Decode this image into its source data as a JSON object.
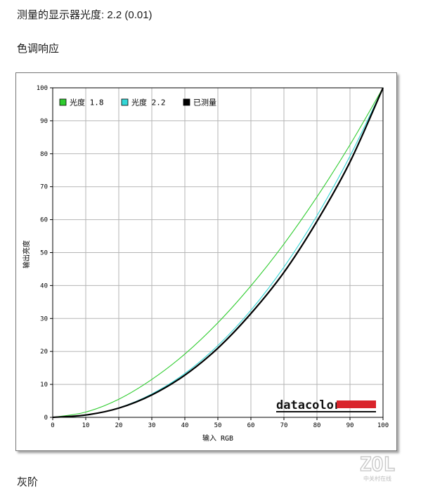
{
  "page": {
    "gamma_heading": "测量的显示器光度: 2.2 (0.01)",
    "tone_heading": "色调响应",
    "gray_heading": "灰阶"
  },
  "watermark": {
    "logo": "ZOL",
    "subtitle": "中关村在线"
  },
  "chart_data": {
    "type": "line",
    "title": "",
    "xlabel": "输入 RGB",
    "ylabel": "输出亮度",
    "xlim": [
      0,
      100
    ],
    "ylim": [
      0,
      100
    ],
    "x_ticks": [
      0,
      10,
      20,
      30,
      40,
      50,
      60,
      70,
      80,
      90,
      100
    ],
    "y_ticks": [
      0,
      10,
      20,
      30,
      40,
      50,
      60,
      70,
      80,
      90,
      100
    ],
    "grid": true,
    "legend_position": "top-left",
    "brand": "datacolor",
    "series": [
      {
        "name": "光度 1.8",
        "color": "#2ecc2e",
        "x": [
          0,
          10,
          20,
          30,
          40,
          50,
          60,
          70,
          80,
          90,
          100
        ],
        "y": [
          0,
          1.6,
          5.5,
          11.5,
          19.2,
          28.7,
          39.9,
          52.6,
          66.9,
          82.7,
          100
        ]
      },
      {
        "name": "光度 2.2",
        "color": "#33d6d6",
        "x": [
          0,
          10,
          20,
          30,
          40,
          50,
          60,
          70,
          80,
          90,
          100
        ],
        "y": [
          0,
          0.6,
          2.9,
          7.1,
          13.3,
          21.8,
          32.5,
          45.6,
          61.2,
          79.3,
          100
        ]
      },
      {
        "name": "已测量",
        "color": "#000000",
        "x": [
          0,
          10,
          20,
          30,
          40,
          50,
          60,
          70,
          80,
          90,
          100
        ],
        "y": [
          0,
          0.7,
          2.8,
          6.8,
          12.8,
          21.0,
          31.5,
          44.0,
          59.5,
          77.5,
          100
        ]
      }
    ]
  }
}
